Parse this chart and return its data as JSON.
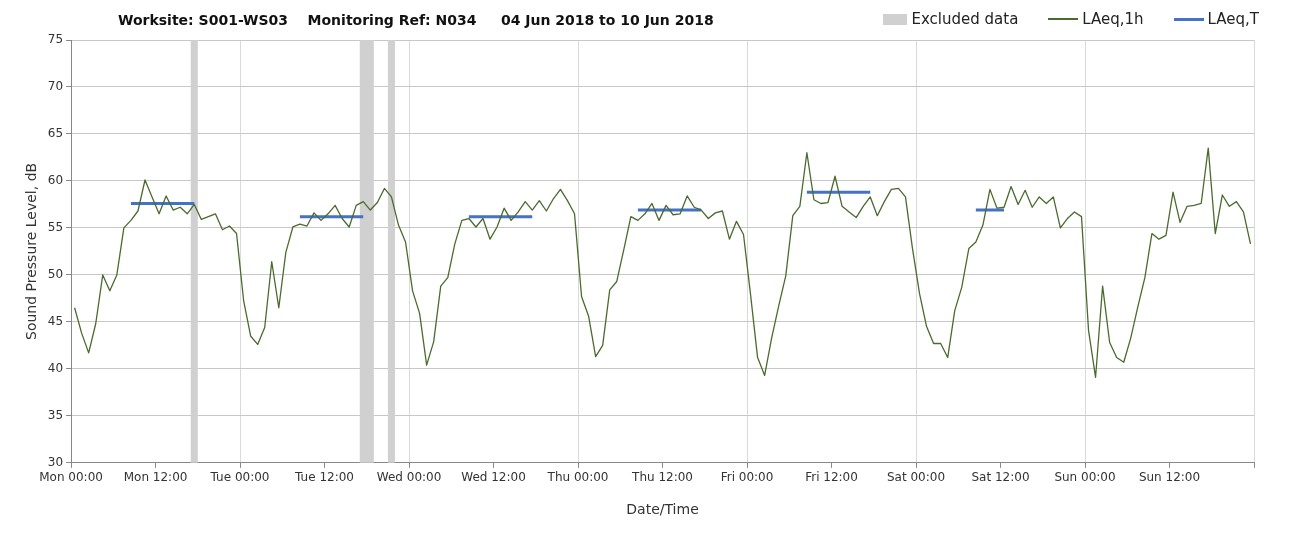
{
  "chart_data": {
    "type": "line",
    "title": "Worksite: S001-WS03    Monitoring Ref: N034     04 Jun 2018 to 10 Jun 2018",
    "xlabel": "Date/Time",
    "ylabel": "Sound Pressure Level, dB",
    "xlim": [
      "2018-06-04T00:00",
      "2018-06-11T00:00"
    ],
    "ylim": [
      30,
      75
    ],
    "xticks": [
      {
        "value": "2018-06-04T00:00",
        "label": "Mon 00:00"
      },
      {
        "value": "2018-06-04T12:00",
        "label": "Mon 12:00"
      },
      {
        "value": "2018-06-05T00:00",
        "label": "Tue 00:00"
      },
      {
        "value": "2018-06-05T12:00",
        "label": "Tue 12:00"
      },
      {
        "value": "2018-06-06T00:00",
        "label": "Wed 00:00"
      },
      {
        "value": "2018-06-06T12:00",
        "label": "Wed 12:00"
      },
      {
        "value": "2018-06-07T00:00",
        "label": "Thu 00:00"
      },
      {
        "value": "2018-06-07T12:00",
        "label": "Thu 12:00"
      },
      {
        "value": "2018-06-08T00:00",
        "label": "Fri 00:00"
      },
      {
        "value": "2018-06-08T12:00",
        "label": "Fri 12:00"
      },
      {
        "value": "2018-06-09T00:00",
        "label": "Sat 00:00"
      },
      {
        "value": "2018-06-09T12:00",
        "label": "Sat 12:00"
      },
      {
        "value": "2018-06-10T00:00",
        "label": "Sun 00:00"
      },
      {
        "value": "2018-06-10T12:00",
        "label": "Sun 12:00"
      },
      {
        "value": "2018-06-11T00:00",
        "label": null
      }
    ],
    "yticks": [
      30,
      35,
      40,
      45,
      50,
      55,
      60,
      65,
      70,
      75
    ],
    "grid": true,
    "legend": "top right",
    "bands": [
      {
        "axis": "x",
        "from": "2018-06-04T17:00",
        "to": "2018-06-04T18:00",
        "label": "Excluded data",
        "color": "#d0d0d0"
      },
      {
        "axis": "x",
        "from": "2018-06-05T17:00",
        "to": "2018-06-05T19:00",
        "color": "#d0d0d0"
      },
      {
        "axis": "x",
        "from": "2018-06-05T21:00",
        "to": "2018-06-05T22:00",
        "color": "#d0d0d0"
      }
    ],
    "series": [
      {
        "name": "LAeq,1h",
        "color": "#4a6b2e",
        "x": [
          "2018-06-04T00:30",
          "2018-06-04T01:30",
          "2018-06-04T02:30",
          "2018-06-04T03:30",
          "2018-06-04T04:30",
          "2018-06-04T05:30",
          "2018-06-04T06:30",
          "2018-06-04T07:30",
          "2018-06-04T08:30",
          "2018-06-04T09:30",
          "2018-06-04T10:30",
          "2018-06-04T11:30",
          "2018-06-04T12:30",
          "2018-06-04T13:30",
          "2018-06-04T14:30",
          "2018-06-04T15:30",
          "2018-06-04T16:30",
          "2018-06-04T17:30",
          "2018-06-04T18:30",
          "2018-06-04T19:30",
          "2018-06-04T20:30",
          "2018-06-04T21:30",
          "2018-06-04T22:30",
          "2018-06-04T23:30",
          "2018-06-05T00:30",
          "2018-06-05T01:30",
          "2018-06-05T02:30",
          "2018-06-05T03:30",
          "2018-06-05T04:30",
          "2018-06-05T05:30",
          "2018-06-05T06:30",
          "2018-06-05T07:30",
          "2018-06-05T08:30",
          "2018-06-05T09:30",
          "2018-06-05T10:30",
          "2018-06-05T11:30",
          "2018-06-05T12:30",
          "2018-06-05T13:30",
          "2018-06-05T14:30",
          "2018-06-05T15:30",
          "2018-06-05T16:30",
          "2018-06-05T17:30",
          "2018-06-05T18:30",
          "2018-06-05T19:30",
          "2018-06-05T20:30",
          "2018-06-05T21:30",
          "2018-06-05T22:30",
          "2018-06-05T23:30",
          "2018-06-06T00:30",
          "2018-06-06T01:30",
          "2018-06-06T02:30",
          "2018-06-06T03:30",
          "2018-06-06T04:30",
          "2018-06-06T05:30",
          "2018-06-06T06:30",
          "2018-06-06T07:30",
          "2018-06-06T08:30",
          "2018-06-06T09:30",
          "2018-06-06T10:30",
          "2018-06-06T11:30",
          "2018-06-06T12:30",
          "2018-06-06T13:30",
          "2018-06-06T14:30",
          "2018-06-06T15:30",
          "2018-06-06T16:30",
          "2018-06-06T17:30",
          "2018-06-06T18:30",
          "2018-06-06T19:30",
          "2018-06-06T20:30",
          "2018-06-06T21:30",
          "2018-06-06T22:30",
          "2018-06-06T23:30",
          "2018-06-07T00:30",
          "2018-06-07T01:30",
          "2018-06-07T02:30",
          "2018-06-07T03:30",
          "2018-06-07T04:30",
          "2018-06-07T05:30",
          "2018-06-07T06:30",
          "2018-06-07T07:30",
          "2018-06-07T08:30",
          "2018-06-07T09:30",
          "2018-06-07T10:30",
          "2018-06-07T11:30",
          "2018-06-07T12:30",
          "2018-06-07T13:30",
          "2018-06-07T14:30",
          "2018-06-07T15:30",
          "2018-06-07T16:30",
          "2018-06-07T17:30",
          "2018-06-07T18:30",
          "2018-06-07T19:30",
          "2018-06-07T20:30",
          "2018-06-07T21:30",
          "2018-06-07T22:30",
          "2018-06-07T23:30",
          "2018-06-08T00:30",
          "2018-06-08T01:30",
          "2018-06-08T02:30",
          "2018-06-08T03:30",
          "2018-06-08T04:30",
          "2018-06-08T05:30",
          "2018-06-08T06:30",
          "2018-06-08T07:30",
          "2018-06-08T08:30",
          "2018-06-08T09:30",
          "2018-06-08T10:30",
          "2018-06-08T11:30",
          "2018-06-08T12:30",
          "2018-06-08T13:30",
          "2018-06-08T14:30",
          "2018-06-08T15:30",
          "2018-06-08T16:30",
          "2018-06-08T17:30",
          "2018-06-08T18:30",
          "2018-06-08T19:30",
          "2018-06-08T20:30",
          "2018-06-08T21:30",
          "2018-06-08T22:30",
          "2018-06-08T23:30",
          "2018-06-09T00:30",
          "2018-06-09T01:30",
          "2018-06-09T02:30",
          "2018-06-09T03:30",
          "2018-06-09T04:30",
          "2018-06-09T05:30",
          "2018-06-09T06:30",
          "2018-06-09T07:30",
          "2018-06-09T08:30",
          "2018-06-09T09:30",
          "2018-06-09T10:30",
          "2018-06-09T11:30",
          "2018-06-09T12:30",
          "2018-06-09T13:30",
          "2018-06-09T14:30",
          "2018-06-09T15:30",
          "2018-06-09T16:30",
          "2018-06-09T17:30",
          "2018-06-09T18:30",
          "2018-06-09T19:30",
          "2018-06-09T20:30",
          "2018-06-09T21:30",
          "2018-06-09T22:30",
          "2018-06-09T23:30",
          "2018-06-10T00:30",
          "2018-06-10T01:30",
          "2018-06-10T02:30",
          "2018-06-10T03:30",
          "2018-06-10T04:30",
          "2018-06-10T05:30",
          "2018-06-10T06:30",
          "2018-06-10T07:30",
          "2018-06-10T08:30",
          "2018-06-10T09:30",
          "2018-06-10T10:30",
          "2018-06-10T11:30",
          "2018-06-10T12:30",
          "2018-06-10T13:30",
          "2018-06-10T14:30",
          "2018-06-10T15:30",
          "2018-06-10T16:30",
          "2018-06-10T17:30",
          "2018-06-10T18:30",
          "2018-06-10T19:30",
          "2018-06-10T20:30",
          "2018-06-10T21:30",
          "2018-06-10T22:30",
          "2018-06-10T23:30"
        ],
        "values": [
          46.5,
          43.8,
          41.7,
          44.8,
          50.0,
          48.3,
          50.0,
          55.0,
          55.8,
          56.8,
          60.1,
          58.3,
          56.5,
          58.4,
          56.9,
          57.2,
          56.5,
          57.5,
          55.9,
          56.2,
          56.5,
          54.8,
          55.2,
          54.4,
          47.3,
          43.5,
          42.6,
          44.4,
          51.4,
          46.5,
          52.4,
          55.1,
          55.4,
          55.2,
          56.6,
          55.8,
          56.5,
          57.4,
          56.0,
          55.1,
          57.4,
          57.8,
          56.9,
          57.7,
          59.2,
          58.3,
          55.3,
          53.5,
          48.3,
          45.9,
          40.4,
          42.9,
          48.8,
          49.7,
          53.3,
          55.8,
          56.0,
          55.1,
          56.0,
          53.8,
          55.1,
          57.1,
          55.8,
          56.7,
          57.8,
          56.9,
          57.9,
          56.8,
          58.1,
          59.1,
          57.9,
          56.5,
          47.7,
          45.6,
          41.3,
          42.5,
          48.4,
          49.3,
          52.7,
          56.2,
          55.8,
          56.5,
          57.6,
          55.8,
          57.4,
          56.4,
          56.5,
          58.4,
          57.2,
          56.9,
          56.0,
          56.6,
          56.8,
          53.8,
          55.7,
          54.3,
          47.9,
          41.2,
          39.3,
          43.3,
          46.7,
          49.9,
          56.3,
          57.3,
          63.0,
          58.0,
          57.6,
          57.7,
          60.5,
          57.3,
          56.7,
          56.1,
          57.3,
          58.3,
          56.3,
          57.8,
          59.1,
          59.2,
          58.3,
          52.8,
          48.0,
          44.5,
          42.7,
          42.7,
          41.2,
          46.2,
          48.7,
          52.8,
          53.5,
          55.3,
          59.1,
          57.1,
          57.2,
          59.4,
          57.5,
          59.0,
          57.2,
          58.3,
          57.6,
          58.3,
          55.0,
          56.0,
          56.7,
          56.2,
          44.1,
          39.1,
          48.8,
          42.8,
          41.2,
          40.7,
          43.3,
          46.6,
          49.7,
          54.4,
          53.8,
          54.2,
          58.8,
          55.6,
          57.3,
          57.4,
          57.6,
          63.5,
          54.4,
          58.5,
          57.3,
          57.8,
          56.7,
          53.3
        ]
      },
      {
        "name": "LAeq,T",
        "color": "#4472c4",
        "x": [
          "2018-06-04T08:30",
          "2018-06-04T17:30",
          "2018-06-04T20:00",
          "2018-06-05T08:30",
          "2018-06-05T17:30",
          "2018-06-05T20:00",
          "2018-06-06T08:30",
          "2018-06-06T17:30",
          "2018-06-06T20:00",
          "2018-06-07T08:30",
          "2018-06-07T17:30",
          "2018-06-07T20:00",
          "2018-06-08T08:30",
          "2018-06-08T17:30",
          "2018-06-08T20:00",
          "2018-06-09T08:30",
          "2018-06-09T12:30"
        ],
        "values": [
          57.6,
          57.6,
          null,
          56.2,
          56.2,
          null,
          56.2,
          56.2,
          null,
          56.9,
          56.9,
          null,
          58.8,
          58.8,
          null,
          56.9,
          56.9
        ]
      }
    ]
  }
}
